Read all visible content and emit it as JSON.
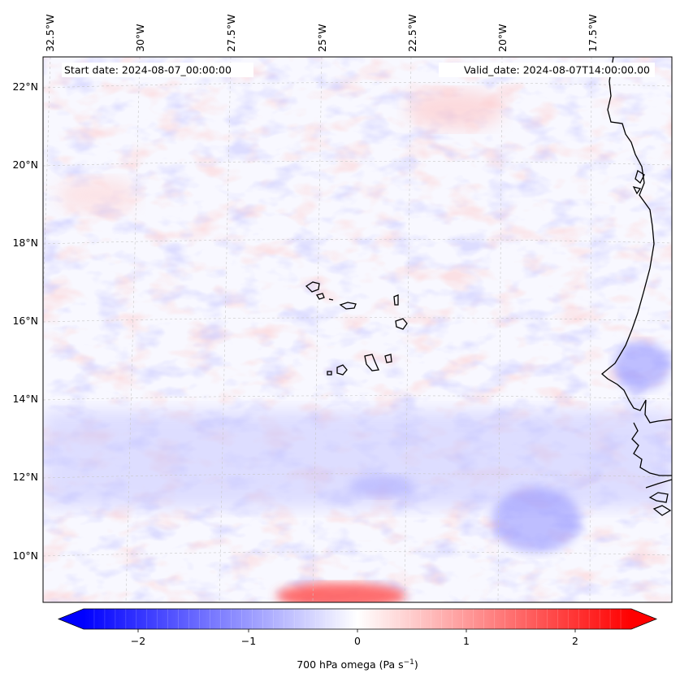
{
  "header": {
    "start_date": "Start date: 2024-08-07_00:00:00",
    "valid_date": "Valid_date: 2024-08-07T14:00:00.00"
  },
  "axes": {
    "lon_labels": [
      "32.5°W",
      "30°W",
      "27.5°W",
      "25°W",
      "22.5°W",
      "20°W",
      "17.5°W"
    ],
    "lat_labels": [
      "22°N",
      "20°N",
      "18°N",
      "16°N",
      "14°N",
      "12°N",
      "10°N"
    ]
  },
  "colorbar": {
    "label": "700 hPa omega (Pa s",
    "label_sup": "−1",
    "label_end": ")",
    "ticks": [
      "−2",
      "−1",
      "0",
      "1",
      "2"
    ],
    "min": -2.6,
    "max": 2.6,
    "low_color": "#0000ff",
    "mid_color": "#ffffff",
    "high_color": "#ff0000"
  },
  "map": {
    "field": "700 hPa omega",
    "colormap": "bwr",
    "coastline_color": "#000000",
    "gridlines": "dashed light gray"
  }
}
